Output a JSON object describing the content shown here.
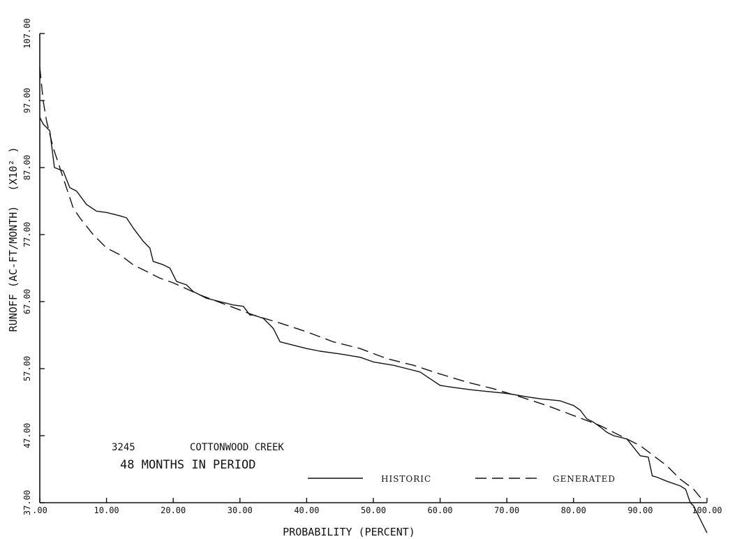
{
  "chart_data": {
    "type": "line",
    "title": "",
    "xlabel": "PROBABILITY (PERCENT)",
    "ylabel": "RUNOFF (AC-FT/MONTH)",
    "ylabel_multiplier": "(X10² )",
    "xlim": [
      0,
      100
    ],
    "ylim": [
      37,
      107
    ],
    "xticks": [
      ".00",
      "10.00",
      "20.00",
      "30.00",
      "40.00",
      "50.00",
      "60.00",
      "70.00",
      "80.00",
      "90.00",
      "100.00"
    ],
    "yticks": [
      "37.00",
      "47.00",
      "57.00",
      "67.00",
      "77.00",
      "87.00",
      "97.00",
      "107.00"
    ],
    "grid": false,
    "legend_position": "bottom-right",
    "annotations": {
      "station_id": "3245",
      "station_name": "COTTONWOOD CREEK",
      "period": "48 MONTHS IN PERIOD"
    },
    "series": [
      {
        "name": "HISTORIC",
        "style": "solid",
        "points": [
          [
            0.0,
            94.5
          ],
          [
            0.5,
            93.5
          ],
          [
            1.5,
            92.5
          ],
          [
            2.2,
            87.0
          ],
          [
            3.5,
            86.5
          ],
          [
            4.5,
            84.0
          ],
          [
            5.5,
            83.5
          ],
          [
            7.0,
            81.5
          ],
          [
            8.5,
            80.5
          ],
          [
            10.0,
            80.3
          ],
          [
            12.0,
            79.8
          ],
          [
            13.0,
            79.5
          ],
          [
            14.0,
            78.0
          ],
          [
            15.5,
            76.0
          ],
          [
            16.5,
            75.0
          ],
          [
            17.0,
            73.0
          ],
          [
            18.5,
            72.5
          ],
          [
            19.5,
            72.0
          ],
          [
            20.5,
            70.0
          ],
          [
            22.0,
            69.5
          ],
          [
            23.0,
            68.5
          ],
          [
            25.0,
            67.5
          ],
          [
            27.0,
            67.0
          ],
          [
            29.0,
            66.5
          ],
          [
            30.5,
            66.3
          ],
          [
            31.5,
            65.0
          ],
          [
            32.0,
            65.0
          ],
          [
            33.5,
            64.5
          ],
          [
            35.0,
            63.0
          ],
          [
            36.0,
            61.0
          ],
          [
            38.0,
            60.5
          ],
          [
            40.0,
            60.0
          ],
          [
            42.0,
            59.6
          ],
          [
            45.0,
            59.2
          ],
          [
            48.0,
            58.7
          ],
          [
            50.0,
            58.0
          ],
          [
            53.0,
            57.5
          ],
          [
            55.0,
            57.0
          ],
          [
            57.0,
            56.5
          ],
          [
            58.5,
            55.5
          ],
          [
            60.0,
            54.5
          ],
          [
            62.0,
            54.2
          ],
          [
            65.0,
            53.8
          ],
          [
            68.0,
            53.5
          ],
          [
            70.0,
            53.3
          ],
          [
            73.0,
            52.8
          ],
          [
            75.0,
            52.5
          ],
          [
            78.0,
            52.2
          ],
          [
            80.0,
            51.5
          ],
          [
            81.0,
            50.8
          ],
          [
            82.0,
            49.5
          ],
          [
            83.0,
            49.0
          ],
          [
            84.0,
            48.3
          ],
          [
            85.0,
            47.5
          ],
          [
            86.0,
            47.0
          ],
          [
            88.0,
            46.5
          ],
          [
            90.0,
            44.0
          ],
          [
            91.2,
            43.8
          ],
          [
            91.8,
            41.0
          ],
          [
            92.5,
            40.8
          ],
          [
            94.0,
            40.2
          ],
          [
            96.0,
            39.5
          ],
          [
            96.8,
            39.0
          ],
          [
            97.5,
            37.0
          ],
          [
            98.0,
            36.5
          ],
          [
            98.5,
            35.5
          ],
          [
            99.0,
            34.5
          ],
          [
            99.5,
            33.5
          ],
          [
            100.0,
            32.5
          ]
        ]
      },
      {
        "name": "GENERATED",
        "style": "dashed",
        "points": [
          [
            0.0,
            102.0
          ],
          [
            0.5,
            97.0
          ],
          [
            1.0,
            94.0
          ],
          [
            2.0,
            90.0
          ],
          [
            3.0,
            87.0
          ],
          [
            4.0,
            84.0
          ],
          [
            5.0,
            81.0
          ],
          [
            6.0,
            79.5
          ],
          [
            8.0,
            77.0
          ],
          [
            10.0,
            75.0
          ],
          [
            12.0,
            74.0
          ],
          [
            14.0,
            72.5
          ],
          [
            16.0,
            71.5
          ],
          [
            18.0,
            70.5
          ],
          [
            20.0,
            69.8
          ],
          [
            24.0,
            68.0
          ],
          [
            28.0,
            66.5
          ],
          [
            32.0,
            65.0
          ],
          [
            36.0,
            63.8
          ],
          [
            40.0,
            62.5
          ],
          [
            44.0,
            61.0
          ],
          [
            48.0,
            60.0
          ],
          [
            52.0,
            58.5
          ],
          [
            56.0,
            57.5
          ],
          [
            60.0,
            56.2
          ],
          [
            64.0,
            55.0
          ],
          [
            68.0,
            54.0
          ],
          [
            72.0,
            52.8
          ],
          [
            76.0,
            51.5
          ],
          [
            80.0,
            50.0
          ],
          [
            84.0,
            48.5
          ],
          [
            88.0,
            46.5
          ],
          [
            90.0,
            45.5
          ],
          [
            92.0,
            44.0
          ],
          [
            94.0,
            42.5
          ],
          [
            96.0,
            40.5
          ],
          [
            98.0,
            39.0
          ],
          [
            99.0,
            37.8
          ],
          [
            99.5,
            37.0
          ]
        ]
      }
    ]
  }
}
